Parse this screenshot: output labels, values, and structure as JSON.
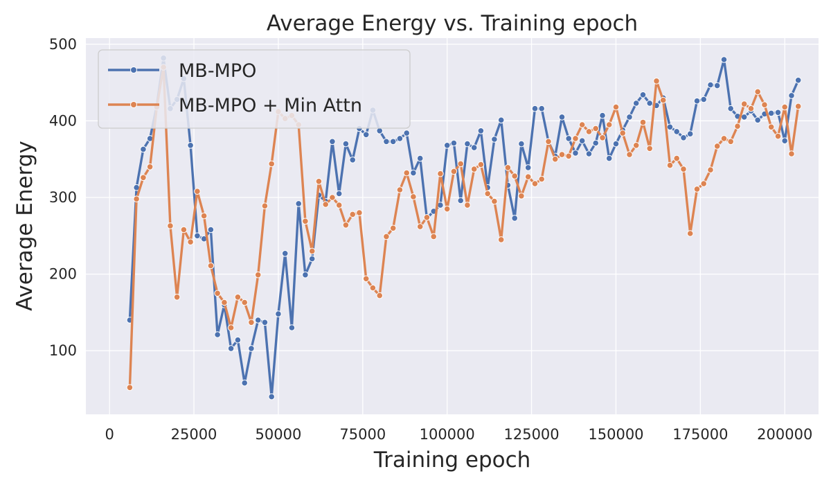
{
  "chart_data": {
    "type": "line",
    "title": "Average Energy vs. Training epoch",
    "xlabel": "Training epoch",
    "ylabel": "Average Energy",
    "xlim": [
      -7000,
      210000
    ],
    "ylim": [
      17,
      508
    ],
    "xticks": [
      0,
      25000,
      50000,
      75000,
      100000,
      125000,
      150000,
      175000,
      200000
    ],
    "yticks": [
      100,
      200,
      300,
      400,
      500
    ],
    "grid": true,
    "legend_position": "top-left",
    "x": [
      6000,
      8000,
      10000,
      12000,
      14000,
      16000,
      18000,
      20000,
      22000,
      24000,
      26000,
      28000,
      30000,
      32000,
      34000,
      36000,
      38000,
      40000,
      42000,
      44000,
      46000,
      48000,
      50000,
      52000,
      54000,
      56000,
      58000,
      60000,
      62000,
      64000,
      66000,
      68000,
      70000,
      72000,
      74000,
      76000,
      78000,
      80000,
      82000,
      84000,
      86000,
      88000,
      90000,
      92000,
      94000,
      96000,
      98000,
      100000,
      102000,
      104000,
      106000,
      108000,
      110000,
      112000,
      114000,
      116000,
      118000,
      120000,
      122000,
      124000,
      126000,
      128000,
      130000,
      132000,
      134000,
      136000,
      138000,
      140000,
      142000,
      144000,
      146000,
      148000,
      150000,
      152000,
      154000,
      156000,
      158000,
      160000,
      162000,
      164000,
      166000,
      168000,
      170000,
      172000,
      174000,
      176000,
      178000,
      180000,
      182000,
      184000,
      186000,
      188000,
      190000,
      192000,
      194000,
      196000,
      198000,
      200000,
      202000,
      204000
    ],
    "series": [
      {
        "name": "MB-MPO",
        "color": "#4c72b0",
        "values": [
          140,
          313,
          363,
          377,
          420,
          482,
          416,
          428,
          455,
          368,
          250,
          246,
          258,
          121,
          160,
          103,
          114,
          58,
          103,
          140,
          137,
          40,
          148,
          227,
          130,
          292,
          199,
          220,
          303,
          295,
          373,
          305,
          370,
          349,
          390,
          382,
          414,
          387,
          373,
          373,
          377,
          384,
          332,
          351,
          273,
          282,
          290,
          368,
          371,
          296,
          370,
          365,
          387,
          313,
          376,
          401,
          316,
          273,
          370,
          339,
          416,
          416,
          373,
          354,
          405,
          377,
          358,
          374,
          357,
          371,
          407,
          351,
          370,
          388,
          405,
          423,
          434,
          423,
          420,
          430,
          392,
          386,
          378,
          383,
          426,
          428,
          447,
          446,
          480,
          416,
          406,
          405,
          413,
          401,
          409,
          410,
          411,
          374,
          433,
          453
        ]
      },
      {
        "name": "MB-MPO + Min Attn",
        "color": "#dd8452",
        "values": [
          52,
          298,
          326,
          340,
          418,
          470,
          263,
          170,
          258,
          242,
          308,
          276,
          211,
          175,
          163,
          130,
          170,
          163,
          137,
          199,
          289,
          344,
          412,
          403,
          407,
          395,
          269,
          230,
          321,
          291,
          300,
          290,
          264,
          278,
          280,
          194,
          182,
          172,
          249,
          260,
          310,
          332,
          301,
          262,
          274,
          249,
          331,
          285,
          334,
          344,
          290,
          337,
          343,
          305,
          295,
          245,
          339,
          328,
          302,
          327,
          318,
          324,
          373,
          350,
          356,
          354,
          377,
          395,
          386,
          390,
          378,
          395,
          418,
          384,
          356,
          368,
          398,
          364,
          452,
          427,
          342,
          351,
          337,
          253,
          311,
          318,
          336,
          367,
          377,
          373,
          393,
          422,
          416,
          438,
          421,
          392,
          380,
          418,
          357,
          419
        ]
      }
    ]
  }
}
